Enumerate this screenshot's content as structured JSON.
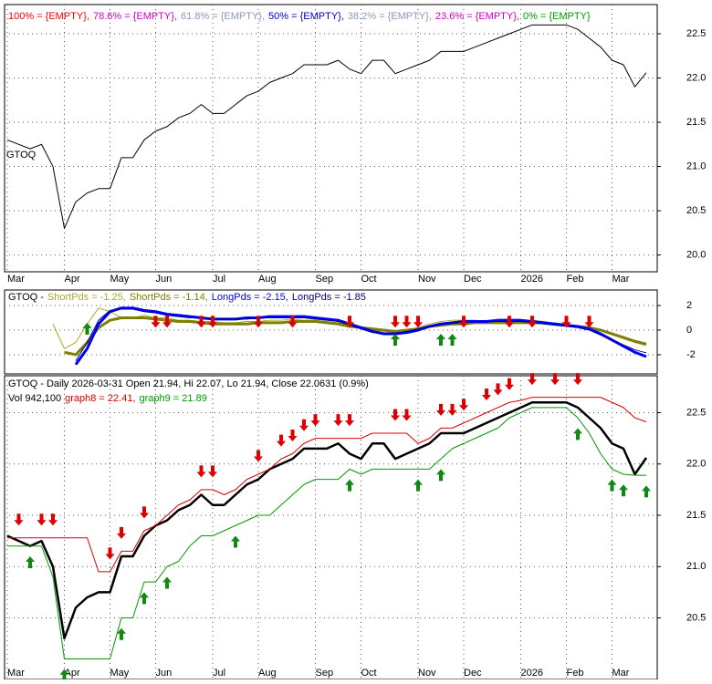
{
  "chart_data": [
    {
      "type": "line",
      "title": "GTOQ",
      "legend": [
        {
          "label": "100% = {EMPTY},",
          "color": "#ff0000"
        },
        {
          "label": "78.6% = {EMPTY},",
          "color": "#cc00cc"
        },
        {
          "label": "61.8% = {EMPTY},",
          "color": "#8899bb"
        },
        {
          "label": "50% = {EMPTY},",
          "color": "#0000cc"
        },
        {
          "label": "38.2% = {EMPTY},",
          "color": "#8899bb"
        },
        {
          "label": "23.6% = {EMPTY},",
          "color": "#cc00cc"
        },
        {
          "label": "0% = {EMPTY}",
          "color": "#009900"
        }
      ],
      "categories": [
        "Mar",
        null,
        null,
        null,
        null,
        "Apr",
        null,
        null,
        null,
        "May",
        null,
        null,
        null,
        "Jun",
        null,
        null,
        null,
        null,
        "Jul",
        null,
        null,
        null,
        "Aug",
        null,
        null,
        null,
        null,
        "Sep",
        null,
        null,
        null,
        "Oct",
        null,
        null,
        null,
        null,
        "Nov",
        null,
        null,
        null,
        "Dec",
        null,
        null,
        null,
        null,
        "2026",
        null,
        null,
        null,
        "Feb",
        null,
        null,
        null,
        "Mar",
        null,
        null,
        null
      ],
      "series": [
        {
          "color": "#000000",
          "values": [
            21.3,
            21.25,
            21.2,
            21.25,
            21.0,
            20.3,
            20.6,
            20.7,
            20.75,
            20.75,
            21.1,
            21.1,
            21.3,
            21.4,
            21.45,
            21.55,
            21.6,
            21.7,
            21.6,
            21.6,
            21.7,
            21.8,
            21.85,
            21.95,
            22.0,
            22.05,
            22.15,
            22.15,
            22.15,
            22.2,
            22.1,
            22.05,
            22.2,
            22.2,
            22.05,
            22.1,
            22.15,
            22.2,
            22.3,
            22.3,
            22.3,
            22.35,
            22.4,
            22.45,
            22.5,
            22.55,
            22.6,
            22.6,
            22.6,
            22.6,
            22.55,
            22.45,
            22.35,
            22.2,
            22.15,
            21.9,
            22.06
          ]
        }
      ],
      "ylim": [
        19.81,
        22.83
      ],
      "yticks": [
        {
          "value": 20,
          "label": "20.0"
        },
        20.5,
        {
          "value": 21,
          "label": "21.0"
        },
        21.5,
        {
          "value": 22,
          "label": "22.0"
        },
        22.5
      ],
      "grid": true
    },
    {
      "type": "line",
      "legend": [
        {
          "label": "GTOQ -",
          "color": "#000000"
        }
      ],
      "series": [
        {
          "name": "ShortPds = -1.25,",
          "color": "#aaaa22",
          "width": 1,
          "values": [
            null,
            null,
            null,
            null,
            0.5,
            -1.5,
            -1.0,
            0.5,
            1.8,
            1.5,
            1.0,
            1.0,
            1.2,
            1.0,
            1.0,
            0.8,
            0.8,
            0.7,
            0.7,
            0.6,
            0.6,
            0.7,
            0.7,
            0.8,
            0.8,
            0.9,
            0.8,
            0.8,
            0.7,
            0.6,
            0.4,
            0.2,
            0,
            -0.1,
            -0.2,
            0,
            0.2,
            0.5,
            0.7,
            0.8,
            0.8,
            0.8,
            0.7,
            0.7,
            0.7,
            0.7,
            0.8,
            0.7,
            0.5,
            0.4,
            0.3,
            0.2,
            0,
            -0.3,
            -0.7,
            -1.0,
            -1.25
          ]
        },
        {
          "name": "ShortPds = -1.14,",
          "color": "#808000",
          "width": 3,
          "values": [
            null,
            null,
            null,
            null,
            null,
            -1.8,
            -2.0,
            -1.0,
            0.2,
            0.8,
            1.0,
            1.0,
            1.0,
            0.9,
            0.8,
            0.7,
            0.7,
            0.6,
            0.5,
            0.5,
            0.5,
            0.5,
            0.6,
            0.6,
            0.6,
            0.7,
            0.7,
            0.7,
            0.6,
            0.5,
            0.3,
            0.2,
            0.1,
            0,
            -0.1,
            0,
            0.1,
            0.3,
            0.4,
            0.5,
            0.5,
            0.6,
            0.6,
            0.6,
            0.6,
            0.6,
            0.6,
            0.6,
            0.5,
            0.4,
            0.3,
            0.2,
            0,
            -0.3,
            -0.6,
            -0.9,
            -1.14
          ]
        },
        {
          "name": "LongPds = -2.15,",
          "color": "#0000ff",
          "width": 3,
          "values": [
            null,
            null,
            null,
            null,
            null,
            null,
            -2.8,
            -1.5,
            0.5,
            1.5,
            1.8,
            1.8,
            1.6,
            1.5,
            1.3,
            1.2,
            1.1,
            1.0,
            0.9,
            0.9,
            0.9,
            1.0,
            1.0,
            1.1,
            1.1,
            1.1,
            1.1,
            1.0,
            0.9,
            0.8,
            0.5,
            0.2,
            -0.1,
            -0.3,
            -0.3,
            -0.2,
            0,
            0.3,
            0.5,
            0.6,
            0.7,
            0.7,
            0.7,
            0.8,
            0.8,
            0.8,
            0.7,
            0.6,
            0.5,
            0.4,
            0.3,
            0.1,
            -0.3,
            -0.8,
            -1.3,
            -1.8,
            -2.15
          ]
        },
        {
          "name": "LongPds = -1.85",
          "color": "#000088",
          "width": 1,
          "values": [
            null,
            null,
            null,
            null,
            null,
            null,
            -2.5,
            -1.0,
            0.8,
            1.6,
            1.7,
            1.7,
            1.5,
            1.4,
            1.2,
            1.1,
            1.0,
            1.0,
            0.9,
            0.9,
            0.9,
            0.9,
            1.0,
            1.0,
            1.0,
            1.0,
            1.0,
            0.9,
            0.8,
            0.7,
            0.4,
            0.1,
            -0.2,
            -0.3,
            -0.3,
            -0.1,
            0.1,
            0.3,
            0.5,
            0.6,
            0.6,
            0.7,
            0.7,
            0.7,
            0.7,
            0.7,
            0.6,
            0.5,
            0.4,
            0.3,
            0.2,
            0,
            -0.4,
            -0.8,
            -1.2,
            -1.6,
            -1.85
          ]
        }
      ],
      "buy": {
        "x": [
          7,
          34,
          38,
          39
        ],
        "values": [
          0.6,
          -0.3,
          -0.3,
          -0.3
        ]
      },
      "sell": {
        "x": [
          13,
          14,
          17,
          18,
          22,
          25,
          30,
          34,
          35,
          36,
          40,
          44,
          46,
          49,
          51
        ],
        "values": [
          0.2,
          0.2,
          0.2,
          0.2,
          0.2,
          0.2,
          0.2,
          0.2,
          0.2,
          0.2,
          0.2,
          0.2,
          0.2,
          0.2,
          0.2
        ]
      },
      "ylim": [
        -3.56,
        3.26
      ],
      "yticks": [
        2,
        0,
        -2
      ],
      "grid": true
    },
    {
      "type": "line",
      "title": "GTOQ - Daily 2026-03-31 Open 21.94, Hi 22.07, Lo 21.94, Close 22.0631 (0.9%)",
      "legend": [
        {
          "label": "Vol 942,100",
          "color": "#000000"
        }
      ],
      "categories": [
        "Mar",
        null,
        null,
        null,
        null,
        "Apr",
        null,
        null,
        null,
        "May",
        null,
        null,
        null,
        "Jun",
        null,
        null,
        null,
        null,
        "Jul",
        null,
        null,
        null,
        "Aug",
        null,
        null,
        null,
        null,
        "Sep",
        null,
        null,
        null,
        "Oct",
        null,
        null,
        null,
        null,
        "Nov",
        null,
        null,
        null,
        "Dec",
        null,
        null,
        null,
        null,
        "2026",
        null,
        null,
        null,
        "Feb",
        null,
        null,
        null,
        "Mar",
        null,
        null,
        null
      ],
      "series": [
        {
          "color": "#000000",
          "width": 2.5,
          "values": [
            21.3,
            21.25,
            21.2,
            21.25,
            21.0,
            20.3,
            20.6,
            20.7,
            20.75,
            20.75,
            21.1,
            21.1,
            21.3,
            21.4,
            21.45,
            21.55,
            21.6,
            21.7,
            21.6,
            21.6,
            21.7,
            21.8,
            21.85,
            21.95,
            22.0,
            22.05,
            22.15,
            22.15,
            22.15,
            22.2,
            22.1,
            22.05,
            22.2,
            22.2,
            22.05,
            22.1,
            22.15,
            22.2,
            22.3,
            22.3,
            22.3,
            22.35,
            22.4,
            22.45,
            22.5,
            22.55,
            22.6,
            22.6,
            22.6,
            22.6,
            22.55,
            22.45,
            22.35,
            22.2,
            22.15,
            21.9,
            22.06
          ]
        },
        {
          "name": "graph8 = 22.41,",
          "color": "#dd0000",
          "width": 1,
          "values": [
            21.28,
            21.28,
            21.28,
            21.28,
            21.28,
            21.28,
            21.28,
            21.28,
            20.95,
            20.95,
            21.15,
            21.15,
            21.35,
            21.4,
            21.5,
            21.6,
            21.65,
            21.75,
            21.75,
            21.7,
            21.75,
            21.85,
            21.9,
            21.95,
            22.05,
            22.1,
            22.2,
            22.25,
            22.25,
            22.25,
            22.25,
            22.25,
            22.3,
            22.3,
            22.3,
            22.3,
            22.2,
            22.25,
            22.35,
            22.35,
            22.4,
            22.45,
            22.5,
            22.55,
            22.6,
            22.62,
            22.65,
            22.65,
            22.65,
            22.65,
            22.65,
            22.65,
            22.65,
            22.6,
            22.55,
            22.45,
            22.41
          ]
        },
        {
          "name": "graph9 = 21.89",
          "color": "#009900",
          "width": 1,
          "values": [
            21.2,
            21.2,
            21.2,
            21.2,
            20.9,
            20.1,
            20.1,
            20.1,
            20.1,
            20.1,
            20.5,
            20.5,
            20.85,
            20.85,
            21.0,
            21.05,
            21.2,
            21.3,
            21.3,
            21.35,
            21.4,
            21.45,
            21.5,
            21.5,
            21.6,
            21.7,
            21.8,
            21.85,
            21.85,
            21.85,
            21.95,
            21.9,
            21.95,
            21.95,
            21.95,
            21.95,
            21.95,
            21.95,
            22.05,
            22.15,
            22.2,
            22.25,
            22.3,
            22.35,
            22.45,
            22.5,
            22.55,
            22.55,
            22.55,
            22.55,
            22.45,
            22.3,
            22.1,
            21.95,
            21.9,
            21.89,
            21.89
          ]
        }
      ],
      "buy": {
        "x": [
          2,
          5,
          10,
          12,
          14,
          20,
          30,
          36,
          38,
          50,
          53,
          54,
          56
        ],
        "values": [
          21.1,
          20.0,
          20.4,
          20.75,
          20.9,
          21.3,
          21.85,
          21.85,
          21.95,
          22.35,
          21.85,
          21.8,
          21.79
        ]
      },
      "sell": {
        "x": [
          1,
          3,
          4,
          9,
          10,
          12,
          17,
          18,
          22,
          24,
          25,
          26,
          27,
          29,
          30,
          34,
          35,
          38,
          39,
          40,
          42,
          43,
          44,
          46,
          48,
          50
        ],
        "values": [
          21.4,
          21.4,
          21.4,
          21.07,
          21.27,
          21.47,
          21.87,
          21.87,
          22.02,
          22.17,
          22.22,
          22.32,
          22.37,
          22.37,
          22.37,
          22.42,
          22.42,
          22.47,
          22.47,
          22.52,
          22.62,
          22.67,
          22.72,
          22.77,
          22.77,
          22.77
        ]
      },
      "ylim": [
        19.9,
        22.86
      ],
      "yticks": [
        20.5,
        {
          "value": 21,
          "label": "21.0"
        },
        21.5,
        {
          "value": 22,
          "label": "22.0"
        },
        22.5
      ],
      "grid": true
    }
  ]
}
